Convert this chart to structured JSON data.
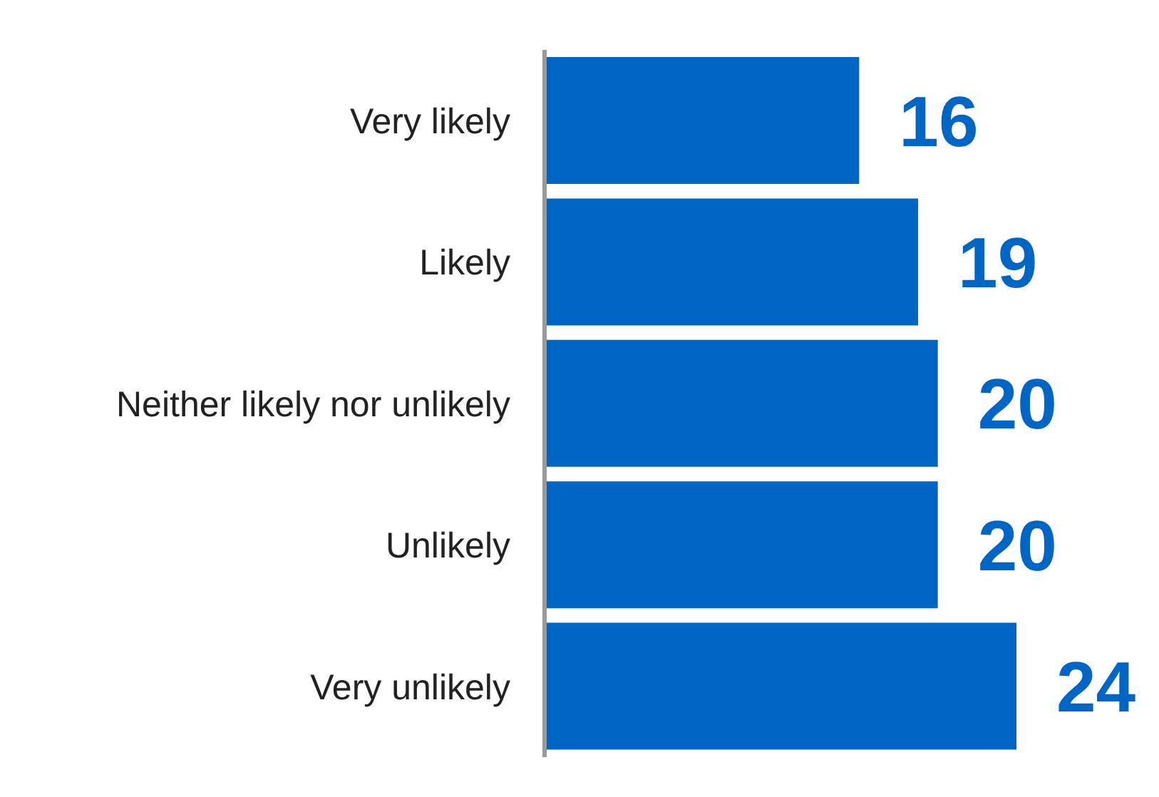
{
  "chart_data": {
    "type": "bar",
    "orientation": "horizontal",
    "categories": [
      "Very likely",
      "Likely",
      "Neither likely nor unlikely",
      "Unlikely",
      "Very unlikely"
    ],
    "values": [
      16,
      19,
      20,
      20,
      24
    ],
    "color": "#0066c6",
    "data_labels": true
  }
}
